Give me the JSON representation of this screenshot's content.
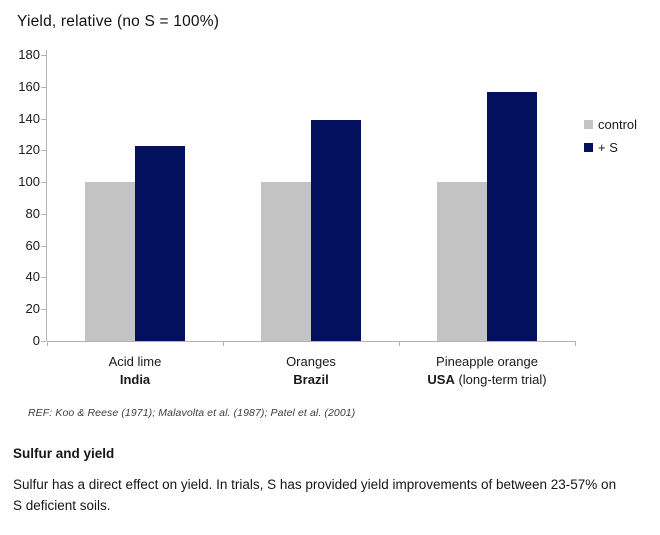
{
  "chart_data": {
    "type": "bar",
    "title": "Yield, relative (no S = 100%)",
    "categories": [
      {
        "name": "Acid lime",
        "sub_bold": "India",
        "sub_rest": ""
      },
      {
        "name": "Oranges",
        "sub_bold": "Brazil",
        "sub_rest": ""
      },
      {
        "name": "Pineapple orange",
        "sub_bold": "USA",
        "sub_rest": " (long-term trial)"
      }
    ],
    "series": [
      {
        "name": "control",
        "color": "#c3c3c3",
        "values": [
          100,
          100,
          100
        ]
      },
      {
        "name": "+ S",
        "color": "#02105e",
        "values": [
          123,
          139,
          157
        ]
      }
    ],
    "ylim": [
      0,
      180
    ],
    "ytick_step": 20,
    "ylabel": "",
    "xlabel": "",
    "grid": false,
    "legend_position": "right"
  },
  "ref_text": "REF: Koo & Reese (1971); Malavolta et al. (1987); Patel et al. (2001)",
  "footer": {
    "heading": "Sulfur and yield",
    "body": "Sulfur has a direct effect on yield. In trials, S has provided yield improvements of between 23-57% on S deficient soils."
  },
  "colors": {
    "axis": "#b3b3b3",
    "text": "#1a1a1a",
    "control_bar": "#c3c3c3",
    "plus_s_bar": "#02105e"
  }
}
